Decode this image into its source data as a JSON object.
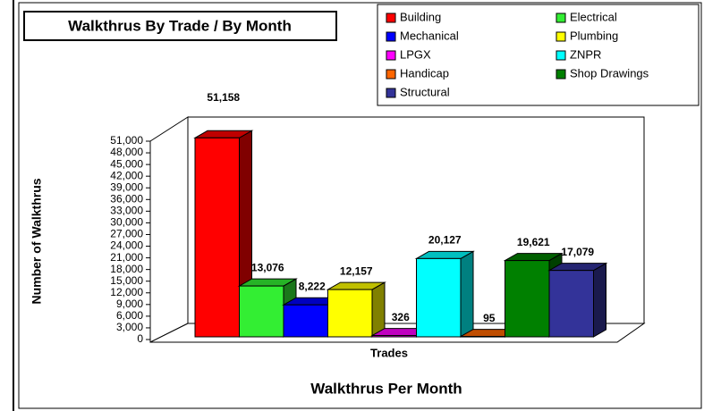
{
  "chart_data": {
    "type": "bar",
    "title": "Walkthrus By Trade / By Month",
    "subtitle": "Walkthrus Per Month",
    "xlabel": "Trades",
    "ylabel": "Number of Walkthrus",
    "categories": [
      "Building",
      "Electrical",
      "Mechanical",
      "Plumbing",
      "LPGX",
      "ZNPR",
      "Handicap",
      "Shop Drawings",
      "Structural"
    ],
    "colors": [
      "#ff0000",
      "#33ee33",
      "#0000ff",
      "#ffff00",
      "#ff00ff",
      "#00ffff",
      "#ff6600",
      "#008000",
      "#333399"
    ],
    "values": [
      51158,
      13076,
      8222,
      12157,
      326,
      20127,
      95,
      19621,
      17079
    ],
    "value_labels": [
      "51,158",
      "13,076",
      "8,222",
      "12,157",
      "326",
      "20,127",
      "95",
      "19,621",
      "17,079"
    ],
    "ylim": [
      0,
      51000
    ],
    "yticks": [
      0,
      {
        "value": 3000,
        "label": "3,000"
      },
      {
        "value": 6000,
        "label": "6,000"
      },
      {
        "value": 9000,
        "label": "9,000"
      },
      {
        "value": 12000,
        "label": "12,000"
      },
      {
        "value": 15000,
        "label": "15,000"
      },
      {
        "value": 18000,
        "label": "18,000"
      },
      {
        "value": 21000,
        "label": "21,000"
      },
      {
        "value": 24000,
        "label": "24,000"
      },
      {
        "value": 27000,
        "label": "27,000"
      },
      {
        "value": 30000,
        "label": "30,000"
      },
      {
        "value": 33000,
        "label": "33,000"
      },
      {
        "value": 36000,
        "label": "36,000"
      },
      {
        "value": 39000,
        "label": "39,000"
      },
      {
        "value": 42000,
        "label": "42,000"
      },
      {
        "value": 45000,
        "label": "45,000"
      },
      {
        "value": 48000,
        "label": "48,000"
      },
      {
        "value": 51000,
        "label": "51,000"
      }
    ],
    "legend": "top-right"
  }
}
